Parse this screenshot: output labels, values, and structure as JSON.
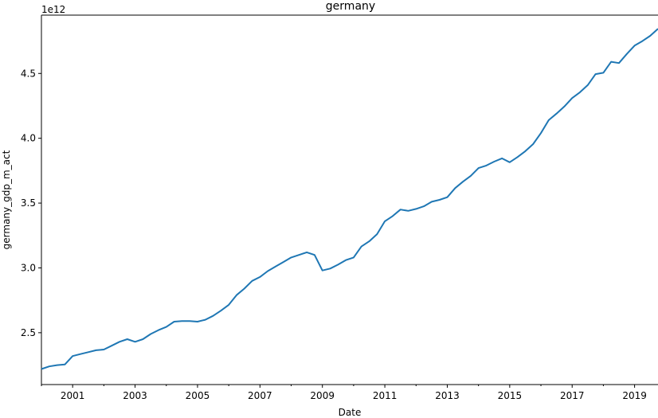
{
  "chart_data": {
    "type": "line",
    "title": "germany",
    "xlabel": "Date",
    "ylabel": "germany_gdp_m_act",
    "y_offset_label": "1e12",
    "y_multiplier": 1000000000000.0,
    "line_color": "#1f77b4",
    "grid": false,
    "xlim": [
      2000.0,
      2019.75
    ],
    "ylim": [
      2.1,
      4.95
    ],
    "x_ticks": [
      2001,
      2003,
      2005,
      2007,
      2009,
      2011,
      2013,
      2015,
      2017,
      2019
    ],
    "x_tick_labels": [
      "2001",
      "2003",
      "2005",
      "2007",
      "2009",
      "2011",
      "2013",
      "2015",
      "2017",
      "2019"
    ],
    "y_ticks": [
      2.5,
      3.0,
      3.5,
      4.0,
      4.5
    ],
    "y_tick_labels": [
      "2.5",
      "3.0",
      "3.5",
      "4.0",
      "4.5"
    ],
    "series": [
      {
        "x": [
          2000.0,
          2000.25,
          2000.5,
          2000.75,
          2001.0,
          2001.25,
          2001.5,
          2001.75,
          2002.0,
          2002.25,
          2002.5,
          2002.75,
          2003.0,
          2003.25,
          2003.5,
          2003.75,
          2004.0,
          2004.25,
          2004.5,
          2004.75,
          2005.0,
          2005.25,
          2005.5,
          2005.75,
          2006.0,
          2006.25,
          2006.5,
          2006.75,
          2007.0,
          2007.25,
          2007.5,
          2007.75,
          2008.0,
          2008.25,
          2008.5,
          2008.75,
          2009.0,
          2009.25,
          2009.5,
          2009.75,
          2010.0,
          2010.25,
          2010.5,
          2010.75,
          2011.0,
          2011.25,
          2011.5,
          2011.75,
          2012.0,
          2012.25,
          2012.5,
          2012.75,
          2013.0,
          2013.25,
          2013.5,
          2013.75,
          2014.0,
          2014.25,
          2014.5,
          2014.75,
          2015.0,
          2015.25,
          2015.5,
          2015.75,
          2016.0,
          2016.25,
          2016.5,
          2016.75,
          2017.0,
          2017.25,
          2017.5,
          2017.75,
          2018.0,
          2018.25,
          2018.5,
          2018.75,
          2019.0,
          2019.25,
          2019.5,
          2019.75
        ],
        "y": [
          2.22,
          2.24,
          2.25,
          2.255,
          2.32,
          2.335,
          2.35,
          2.365,
          2.37,
          2.4,
          2.43,
          2.45,
          2.43,
          2.45,
          2.49,
          2.52,
          2.545,
          2.585,
          2.59,
          2.59,
          2.585,
          2.6,
          2.63,
          2.67,
          2.715,
          2.79,
          2.84,
          2.9,
          2.93,
          2.975,
          3.01,
          3.045,
          3.08,
          3.1,
          3.12,
          3.1,
          2.98,
          2.995,
          3.025,
          3.06,
          3.08,
          3.165,
          3.205,
          3.26,
          3.36,
          3.4,
          3.45,
          3.44,
          3.455,
          3.475,
          3.51,
          3.525,
          3.545,
          3.615,
          3.665,
          3.71,
          3.77,
          3.79,
          3.82,
          3.845,
          3.815,
          3.855,
          3.9,
          3.955,
          4.04,
          4.14,
          4.19,
          4.245,
          4.31,
          4.355,
          4.41,
          4.495,
          4.505,
          4.59,
          4.58,
          4.65,
          4.715,
          4.75,
          4.79,
          4.845
        ]
      }
    ]
  }
}
